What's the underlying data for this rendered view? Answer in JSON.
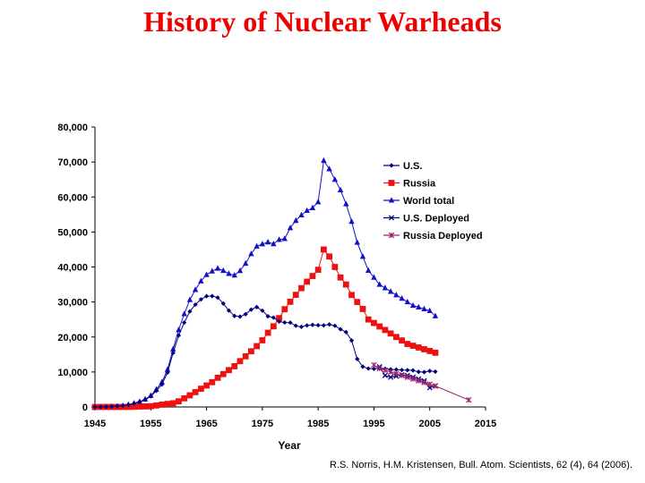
{
  "title": "History of Nuclear Warheads",
  "source": "R.S. Norris, H.M. Kristensen, Bull. Atom. Scientists, 62 (4), 64 (2006).",
  "chart_data": {
    "type": "line",
    "title": "History of Nuclear Warheads",
    "xlabel": "Year",
    "ylabel": "",
    "xlim": [
      1945,
      2015
    ],
    "ylim": [
      0,
      80000
    ],
    "xticks": [
      "1945",
      "1955",
      "1965",
      "1975",
      "1985",
      "1995",
      "2005",
      "2015"
    ],
    "yticks": [
      "0",
      "10,000",
      "20,000",
      "30,000",
      "40,000",
      "50,000",
      "60,000",
      "70,000",
      "80,000"
    ],
    "grid": false,
    "legend_position": "top-right",
    "series": [
      {
        "name": "U.S.",
        "color": "#000080",
        "marker": "diamond",
        "x": [
          1945,
          1946,
          1947,
          1948,
          1949,
          1950,
          1951,
          1952,
          1953,
          1954,
          1955,
          1956,
          1957,
          1958,
          1959,
          1960,
          1961,
          1962,
          1963,
          1964,
          1965,
          1966,
          1967,
          1968,
          1969,
          1970,
          1971,
          1972,
          1973,
          1974,
          1975,
          1976,
          1977,
          1978,
          1979,
          1980,
          1981,
          1982,
          1983,
          1984,
          1985,
          1986,
          1987,
          1988,
          1989,
          1990,
          1991,
          1992,
          1993,
          1994,
          1995,
          1996,
          1997,
          1998,
          1999,
          2000,
          2001,
          2002,
          2003,
          2004,
          2005,
          2006
        ],
        "y": [
          6,
          11,
          32,
          110,
          235,
          369,
          640,
          1005,
          1436,
          2063,
          3057,
          4618,
          6444,
          9822,
          15468,
          20434,
          24111,
          27297,
          29249,
          30751,
          31642,
          31700,
          31255,
          29561,
          27552,
          26008,
          25830,
          26516,
          27835,
          28537,
          27519,
          25914,
          25542,
          24418,
          24138,
          24104,
          23208,
          22886,
          23305,
          23459,
          23368,
          23317,
          23575,
          23205,
          22217,
          21392,
          19008,
          13708,
          11511,
          10979,
          10904,
          11011,
          10903,
          10732,
          10685,
          10577,
          10526,
          10457,
          10027,
          9962,
          10295,
          10104
        ]
      },
      {
        "name": "Russia",
        "color": "#ee1111",
        "marker": "square",
        "x": [
          1945,
          1946,
          1947,
          1948,
          1949,
          1950,
          1951,
          1952,
          1953,
          1954,
          1955,
          1956,
          1957,
          1958,
          1959,
          1960,
          1961,
          1962,
          1963,
          1964,
          1965,
          1966,
          1967,
          1968,
          1969,
          1970,
          1971,
          1972,
          1973,
          1974,
          1975,
          1976,
          1977,
          1978,
          1979,
          1980,
          1981,
          1982,
          1983,
          1984,
          1985,
          1986,
          1987,
          1988,
          1989,
          1990,
          1991,
          1992,
          1993,
          1994,
          1995,
          1996,
          1997,
          1998,
          1999,
          2000,
          2001,
          2002,
          2003,
          2004,
          2005,
          2006
        ],
        "y": [
          0,
          0,
          0,
          0,
          1,
          5,
          25,
          50,
          120,
          150,
          200,
          426,
          660,
          869,
          1060,
          1605,
          2471,
          3322,
          4238,
          5221,
          6129,
          7089,
          8339,
          9399,
          10538,
          11643,
          13092,
          14478,
          15915,
          17385,
          19055,
          21205,
          23044,
          25393,
          27935,
          30062,
          32049,
          33952,
          35804,
          37431,
          39197,
          45000,
          43000,
          40000,
          37000,
          35000,
          32000,
          30000,
          28000,
          25000,
          24000,
          23000,
          22000,
          21000,
          20000,
          19000,
          18000,
          17500,
          17000,
          16500,
          16000,
          15500
        ]
      },
      {
        "name": "World total",
        "color": "#1111cc",
        "marker": "triangle",
        "x": [
          1945,
          1946,
          1947,
          1948,
          1949,
          1950,
          1951,
          1952,
          1953,
          1954,
          1955,
          1956,
          1957,
          1958,
          1959,
          1960,
          1961,
          1962,
          1963,
          1964,
          1965,
          1966,
          1967,
          1968,
          1969,
          1970,
          1971,
          1972,
          1973,
          1974,
          1975,
          1976,
          1977,
          1978,
          1979,
          1980,
          1981,
          1982,
          1983,
          1984,
          1985,
          1986,
          1987,
          1988,
          1989,
          1990,
          1991,
          1992,
          1993,
          1994,
          1995,
          1996,
          1997,
          1998,
          1999,
          2000,
          2001,
          2002,
          2003,
          2004,
          2005,
          2006
        ],
        "y": [
          6,
          11,
          32,
          110,
          236,
          374,
          665,
          1055,
          1556,
          2213,
          3257,
          5044,
          7104,
          10691,
          16528,
          22039,
          26582,
          30619,
          33487,
          35972,
          37771,
          38789,
          39594,
          38960,
          38090,
          37651,
          38922,
          40994,
          43750,
          45922,
          46574,
          47119,
          46586,
          47811,
          48073,
          51166,
          53257,
          54838,
          56109,
          56890,
          58567,
          70400,
          68000,
          65000,
          62000,
          58000,
          53000,
          47000,
          43000,
          39000,
          37000,
          35000,
          34000,
          33000,
          32000,
          31000,
          30000,
          29000,
          28500,
          28000,
          27500,
          26000
        ]
      },
      {
        "name": "U.S. Deployed",
        "color": "#000080",
        "marker": "x",
        "x": [
          1996,
          1997,
          1998,
          1999,
          2000,
          2001,
          2002,
          2003,
          2004,
          2005,
          2006
        ],
        "y": [
          11500,
          9000,
          8500,
          8800,
          9200,
          9000,
          8500,
          8000,
          7500,
          5500,
          6000
        ]
      },
      {
        "name": "Russia Deployed",
        "color": "#a0206a",
        "marker": "star",
        "x": [
          1995,
          1996,
          1997,
          1998,
          1999,
          2000,
          2001,
          2002,
          2003,
          2004,
          2005,
          2006,
          2012
        ],
        "y": [
          12000,
          11000,
          10500,
          10000,
          9500,
          9000,
          8500,
          8000,
          7500,
          7000,
          6500,
          6000,
          2000
        ]
      }
    ]
  }
}
